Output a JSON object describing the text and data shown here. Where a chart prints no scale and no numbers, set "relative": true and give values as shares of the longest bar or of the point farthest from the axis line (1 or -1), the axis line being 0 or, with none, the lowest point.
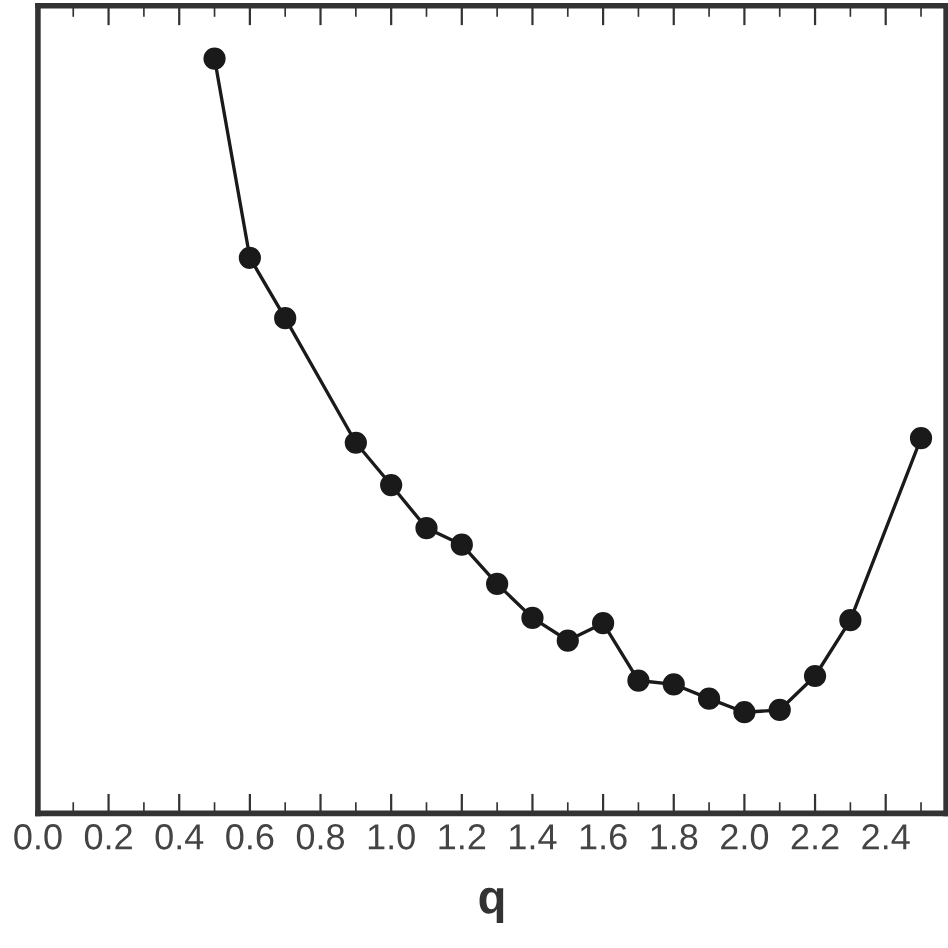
{
  "chart_data": {
    "type": "line",
    "xlabel": "q",
    "relative": true,
    "tick_labels": "x",
    "marker": "circle",
    "line_style": "solid",
    "grid": false,
    "legend": false,
    "xlim": [
      0.0,
      2.571
    ],
    "xticks": [
      {
        "value": 0.0,
        "label": "0.0"
      },
      0.2,
      0.4,
      0.6,
      0.8,
      {
        "value": 1.0,
        "label": "1.0"
      },
      1.2,
      1.4,
      1.6,
      1.8,
      {
        "value": 2.0,
        "label": "2.0"
      },
      2.2,
      2.4
    ],
    "series": [
      {
        "color": "#1a1a1a",
        "x": [
          0.5,
          0.6,
          0.7,
          0.9,
          1.0,
          1.1,
          1.2,
          1.3,
          1.4,
          1.5,
          1.6,
          1.7,
          1.8,
          1.9,
          2.0,
          2.1,
          2.2,
          2.3,
          2.5
        ],
        "values": [
          1,
          0.736,
          0.656,
          0.491,
          0.435,
          0.378,
          0.356,
          0.304,
          0.259,
          0.229,
          0.252,
          0.176,
          0.171,
          0.152,
          0.134,
          0.137,
          0.182,
          0.256,
          0.497
        ]
      }
    ]
  }
}
